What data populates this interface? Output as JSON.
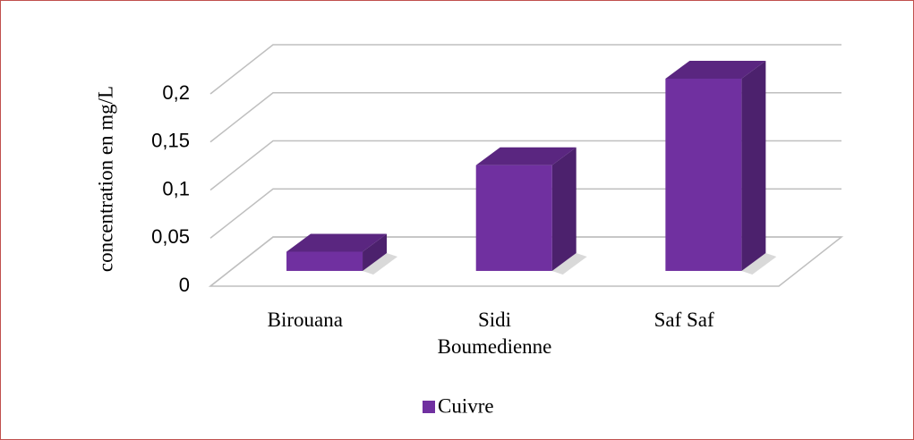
{
  "chart_data": {
    "type": "bar3d",
    "y_label": "concentration en mg/L",
    "categories": [
      "Birouana",
      "Sidi Boumedienne",
      "Saf Saf"
    ],
    "series": [
      {
        "name": "Cuivre",
        "color": "#7030a0",
        "values": [
          0.02,
          0.11,
          0.2
        ]
      }
    ],
    "ylim": [
      0,
      0.2
    ],
    "yticks": [
      0,
      {
        "value": 0.05,
        "label": "0,05"
      },
      {
        "value": 0.1,
        "label": "0,1"
      },
      {
        "value": 0.15,
        "label": "0,15"
      },
      {
        "value": 0.2,
        "label": "0,2"
      }
    ],
    "grid": true,
    "legend": "bottom"
  }
}
